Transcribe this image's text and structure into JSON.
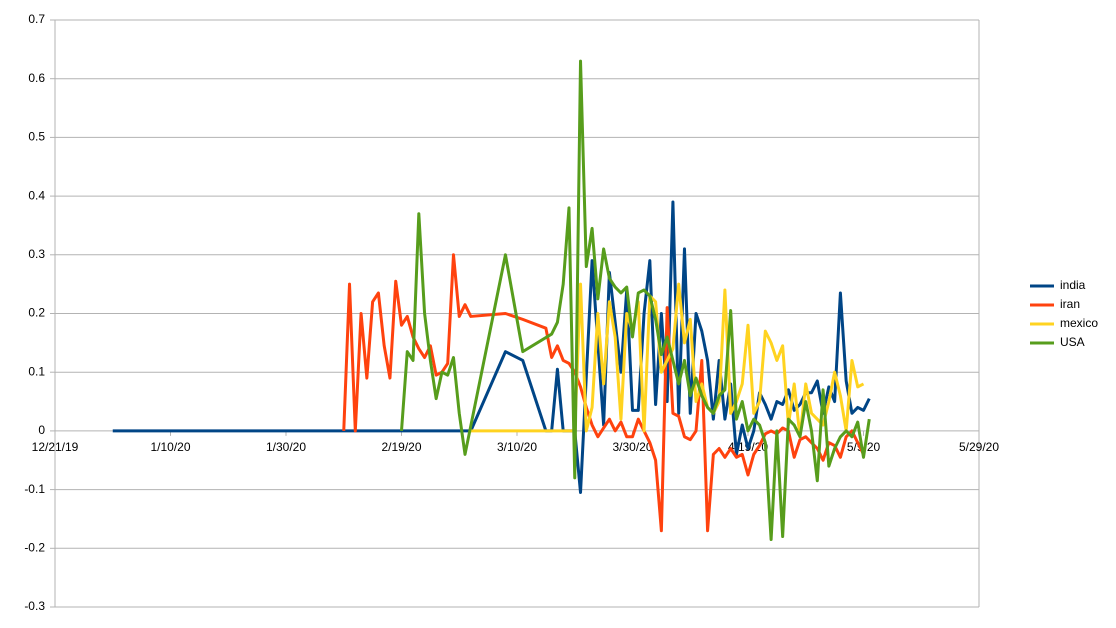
{
  "chart_data": {
    "type": "line",
    "xlim": [
      "2019-12-21",
      "2020-05-29"
    ],
    "xticks": [
      {
        "value": "2019-12-21",
        "label": "12/21/19"
      },
      {
        "value": "2020-01-10",
        "label": "1/10/20"
      },
      {
        "value": "2020-01-30",
        "label": "1/30/20"
      },
      {
        "value": "2020-02-19",
        "label": "2/19/20"
      },
      {
        "value": "2020-03-10",
        "label": "3/10/20"
      },
      {
        "value": "2020-03-30",
        "label": "3/30/20"
      },
      {
        "value": "2020-04-19",
        "label": "4/19/20"
      },
      {
        "value": "2020-05-09",
        "label": "5/9/20"
      },
      {
        "value": "2020-05-29",
        "label": "5/29/20"
      }
    ],
    "ylim": [
      -0.3,
      0.7
    ],
    "yticks": [
      -0.3,
      -0.2,
      -0.1,
      0,
      0.1,
      0.2,
      0.3,
      0.4,
      0.5,
      0.6,
      0.7
    ],
    "grid": true,
    "legend": "right",
    "series": [
      {
        "name": "india",
        "color": "#004586",
        "x": [
          "2019-12-31",
          "2020-03-02",
          "2020-03-08",
          "2020-03-11",
          "2020-03-15",
          "2020-03-16",
          "2020-03-17",
          "2020-03-18",
          "2020-03-20",
          "2020-03-21",
          "2020-03-23",
          "2020-03-25",
          "2020-03-26",
          "2020-03-28",
          "2020-03-29",
          "2020-03-30",
          "2020-03-31",
          "2020-04-01",
          "2020-04-02",
          "2020-04-03",
          "2020-04-04",
          "2020-04-05",
          "2020-04-06",
          "2020-04-07",
          "2020-04-08",
          "2020-04-09",
          "2020-04-10",
          "2020-04-11",
          "2020-04-12",
          "2020-04-13",
          "2020-04-14",
          "2020-04-15",
          "2020-04-16",
          "2020-04-17",
          "2020-04-18",
          "2020-04-19",
          "2020-04-20",
          "2020-04-21",
          "2020-04-22",
          "2020-04-23",
          "2020-04-24",
          "2020-04-25",
          "2020-04-26",
          "2020-04-27",
          "2020-04-28",
          "2020-04-29",
          "2020-04-30",
          "2020-05-01",
          "2020-05-02",
          "2020-05-03",
          "2020-05-04",
          "2020-05-05",
          "2020-05-06",
          "2020-05-07",
          "2020-05-08",
          "2020-05-09",
          "2020-05-10"
        ],
        "values": [
          0,
          0,
          0.135,
          0.12,
          0,
          0,
          0.105,
          0,
          0,
          -0.105,
          0.29,
          0.01,
          0.27,
          0.1,
          0.24,
          0.035,
          0.035,
          0.2,
          0.29,
          0.045,
          0.2,
          0.05,
          0.39,
          0.03,
          0.31,
          0.03,
          0.2,
          0.17,
          0.12,
          0.02,
          0.12,
          0.02,
          0.08,
          -0.04,
          0.01,
          -0.03,
          0.0,
          0.065,
          0.045,
          0.02,
          0.05,
          0.045,
          0.07,
          0.035,
          0.045,
          0.065,
          0.065,
          0.085,
          0.03,
          0.075,
          0.05,
          0.235,
          0.085,
          0.03,
          0.04,
          0.035,
          0.055
        ]
      },
      {
        "name": "iran",
        "color": "#ff420e",
        "x": [
          "2020-02-09",
          "2020-02-10",
          "2020-02-11",
          "2020-02-12",
          "2020-02-13",
          "2020-02-14",
          "2020-02-15",
          "2020-02-16",
          "2020-02-17",
          "2020-02-18",
          "2020-02-19",
          "2020-02-20",
          "2020-02-21",
          "2020-02-22",
          "2020-02-23",
          "2020-02-24",
          "2020-02-25",
          "2020-02-26",
          "2020-02-27",
          "2020-02-28",
          "2020-02-29",
          "2020-03-01",
          "2020-03-02",
          "2020-03-08",
          "2020-03-11",
          "2020-03-15",
          "2020-03-16",
          "2020-03-17",
          "2020-03-18",
          "2020-03-19",
          "2020-03-20",
          "2020-03-21",
          "2020-03-22",
          "2020-03-23",
          "2020-03-24",
          "2020-03-25",
          "2020-03-26",
          "2020-03-27",
          "2020-03-28",
          "2020-03-29",
          "2020-03-30",
          "2020-03-31",
          "2020-04-01",
          "2020-04-02",
          "2020-04-03",
          "2020-04-04",
          "2020-04-05",
          "2020-04-06",
          "2020-04-07",
          "2020-04-08",
          "2020-04-09",
          "2020-04-10",
          "2020-04-11",
          "2020-04-12",
          "2020-04-13",
          "2020-04-14",
          "2020-04-15",
          "2020-04-16",
          "2020-04-17",
          "2020-04-18",
          "2020-04-19",
          "2020-04-20",
          "2020-04-21",
          "2020-04-22",
          "2020-04-23",
          "2020-04-24",
          "2020-04-25",
          "2020-04-26",
          "2020-04-27",
          "2020-04-28",
          "2020-04-29",
          "2020-04-30",
          "2020-05-01",
          "2020-05-02",
          "2020-05-03",
          "2020-05-04",
          "2020-05-05",
          "2020-05-06",
          "2020-05-07",
          "2020-05-08",
          "2020-05-09"
        ],
        "values": [
          0,
          0.25,
          0,
          0.2,
          0.09,
          0.22,
          0.235,
          0.145,
          0.09,
          0.255,
          0.18,
          0.195,
          0.16,
          0.14,
          0.125,
          0.145,
          0.095,
          0.1,
          0.115,
          0.3,
          0.195,
          0.215,
          0.195,
          0.2,
          0.19,
          0.175,
          0.125,
          0.145,
          0.12,
          0.115,
          0.1,
          0.075,
          0.04,
          0.01,
          -0.01,
          0.005,
          0.02,
          0.0,
          0.015,
          -0.01,
          -0.01,
          0.02,
          0.0,
          -0.02,
          -0.05,
          -0.17,
          0.21,
          0.03,
          0.025,
          -0.01,
          -0.015,
          0.0,
          0.12,
          -0.17,
          -0.04,
          -0.03,
          -0.045,
          -0.03,
          -0.045,
          -0.04,
          -0.075,
          -0.04,
          -0.025,
          -0.005,
          0.0,
          -0.005,
          0.005,
          0.0,
          -0.045,
          -0.015,
          -0.01,
          -0.02,
          -0.03,
          -0.05,
          -0.02,
          -0.025,
          -0.045,
          -0.01,
          0.0,
          -0.02,
          -0.04
        ]
      },
      {
        "name": "mexico",
        "color": "#ffd320",
        "x": [
          "2020-03-02",
          "2020-03-20",
          "2020-03-21",
          "2020-03-22",
          "2020-03-23",
          "2020-03-24",
          "2020-03-25",
          "2020-03-26",
          "2020-03-27",
          "2020-03-28",
          "2020-03-29",
          "2020-03-30",
          "2020-03-31",
          "2020-04-01",
          "2020-04-02",
          "2020-04-03",
          "2020-04-04",
          "2020-04-05",
          "2020-04-06",
          "2020-04-07",
          "2020-04-08",
          "2020-04-09",
          "2020-04-10",
          "2020-04-11",
          "2020-04-12",
          "2020-04-13",
          "2020-04-14",
          "2020-04-15",
          "2020-04-16",
          "2020-04-17",
          "2020-04-18",
          "2020-04-19",
          "2020-04-20",
          "2020-04-21",
          "2020-04-22",
          "2020-04-23",
          "2020-04-24",
          "2020-04-25",
          "2020-04-26",
          "2020-04-27",
          "2020-04-28",
          "2020-04-29",
          "2020-04-30",
          "2020-05-01",
          "2020-05-02",
          "2020-05-03",
          "2020-05-04",
          "2020-05-05",
          "2020-05-06",
          "2020-05-07",
          "2020-05-08",
          "2020-05-09"
        ],
        "values": [
          0,
          0,
          0.25,
          0.0,
          0.04,
          0.2,
          0.08,
          0.22,
          0.16,
          0.02,
          0.2,
          0.17,
          0.22,
          0.0,
          0.23,
          0.22,
          0.1,
          0.12,
          0.14,
          0.25,
          0.15,
          0.19,
          0.05,
          0.08,
          0.04,
          0.03,
          0.05,
          0.24,
          0.03,
          0.05,
          0.08,
          0.18,
          0.03,
          0.05,
          0.17,
          0.15,
          0.12,
          0.145,
          0.01,
          0.08,
          -0.01,
          0.08,
          0.03,
          0.02,
          0.01,
          0.05,
          0.1,
          0.06,
          0.0,
          0.12,
          0.075,
          0.08
        ]
      },
      {
        "name": "USA",
        "color": "#579d1c",
        "x": [
          "2020-02-19",
          "2020-02-20",
          "2020-02-21",
          "2020-02-22",
          "2020-02-23",
          "2020-02-24",
          "2020-02-25",
          "2020-02-26",
          "2020-02-27",
          "2020-02-28",
          "2020-02-29",
          "2020-03-01",
          "2020-03-08",
          "2020-03-11",
          "2020-03-16",
          "2020-03-17",
          "2020-03-18",
          "2020-03-19",
          "2020-03-20",
          "2020-03-21",
          "2020-03-22",
          "2020-03-23",
          "2020-03-24",
          "2020-03-25",
          "2020-03-26",
          "2020-03-27",
          "2020-03-28",
          "2020-03-29",
          "2020-03-30",
          "2020-03-31",
          "2020-04-01",
          "2020-04-02",
          "2020-04-03",
          "2020-04-04",
          "2020-04-05",
          "2020-04-06",
          "2020-04-07",
          "2020-04-08",
          "2020-04-09",
          "2020-04-10",
          "2020-04-11",
          "2020-04-12",
          "2020-04-13",
          "2020-04-14",
          "2020-04-15",
          "2020-04-16",
          "2020-04-17",
          "2020-04-18",
          "2020-04-19",
          "2020-04-20",
          "2020-04-21",
          "2020-04-22",
          "2020-04-23",
          "2020-04-24",
          "2020-04-25",
          "2020-04-26",
          "2020-04-27",
          "2020-04-28",
          "2020-04-29",
          "2020-04-30",
          "2020-05-01",
          "2020-05-02",
          "2020-05-03",
          "2020-05-04",
          "2020-05-05",
          "2020-05-06",
          "2020-05-07",
          "2020-05-08",
          "2020-05-09",
          "2020-05-10"
        ],
        "values": [
          0,
          0.135,
          0.12,
          0.37,
          0.2,
          0.12,
          0.055,
          0.1,
          0.095,
          0.125,
          0.03,
          -0.04,
          0.3,
          0.135,
          0.165,
          0.185,
          0.25,
          0.38,
          -0.08,
          0.63,
          0.28,
          0.345,
          0.225,
          0.31,
          0.26,
          0.245,
          0.235,
          0.245,
          0.16,
          0.235,
          0.24,
          0.23,
          0.19,
          0.13,
          0.16,
          0.12,
          0.08,
          0.12,
          0.06,
          0.09,
          0.06,
          0.04,
          0.03,
          0.06,
          0.07,
          0.205,
          0.02,
          0.05,
          0.0,
          0.02,
          0.01,
          -0.02,
          -0.185,
          0.0,
          -0.18,
          0.02,
          0.01,
          -0.01,
          0.05,
          0.0,
          -0.085,
          0.07,
          -0.06,
          -0.03,
          -0.01,
          0.0,
          -0.01,
          0.015,
          -0.045,
          0.02
        ]
      }
    ]
  }
}
